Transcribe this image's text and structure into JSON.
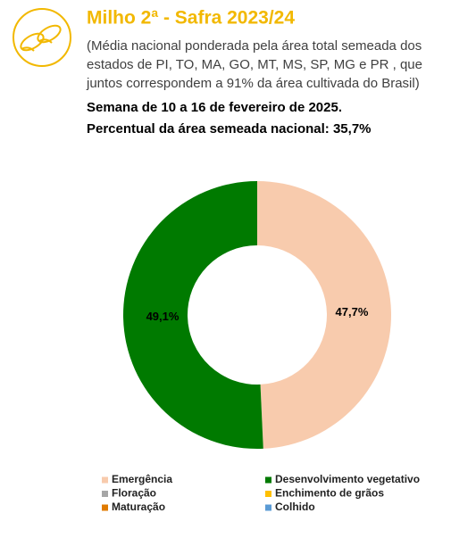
{
  "chart_data": {
    "type": "donut",
    "title": "Milho 2ª - Safra 2023/24",
    "subtitle": [
      "(Média nacional ponderada pela área total semeada dos",
      "estados de PI, TO, MA, GO, MT, MS, SP, MG e PR , que",
      "juntos correspondem a 91% da área cultivada do Brasil)"
    ],
    "week": "Semana de 10 a 16 de fevereiro de 2025.",
    "area_note": "Percentual da área semeada nacional: 35,7%",
    "categories": [
      "Emergência",
      "Desenvolvimento vegetativo",
      "Floração",
      "Enchimento de grãos",
      "Maturação",
      "Colhido"
    ],
    "values": [
      47.7,
      49.1,
      0,
      0,
      0,
      0
    ],
    "value_labels": [
      "47,7%",
      "49,1%",
      null,
      null,
      null,
      null
    ],
    "colors": [
      "#f8cbad",
      "#007a00",
      "#a6a6a6",
      "#ffc000",
      "#e07b00",
      "#5b9bd5"
    ]
  }
}
